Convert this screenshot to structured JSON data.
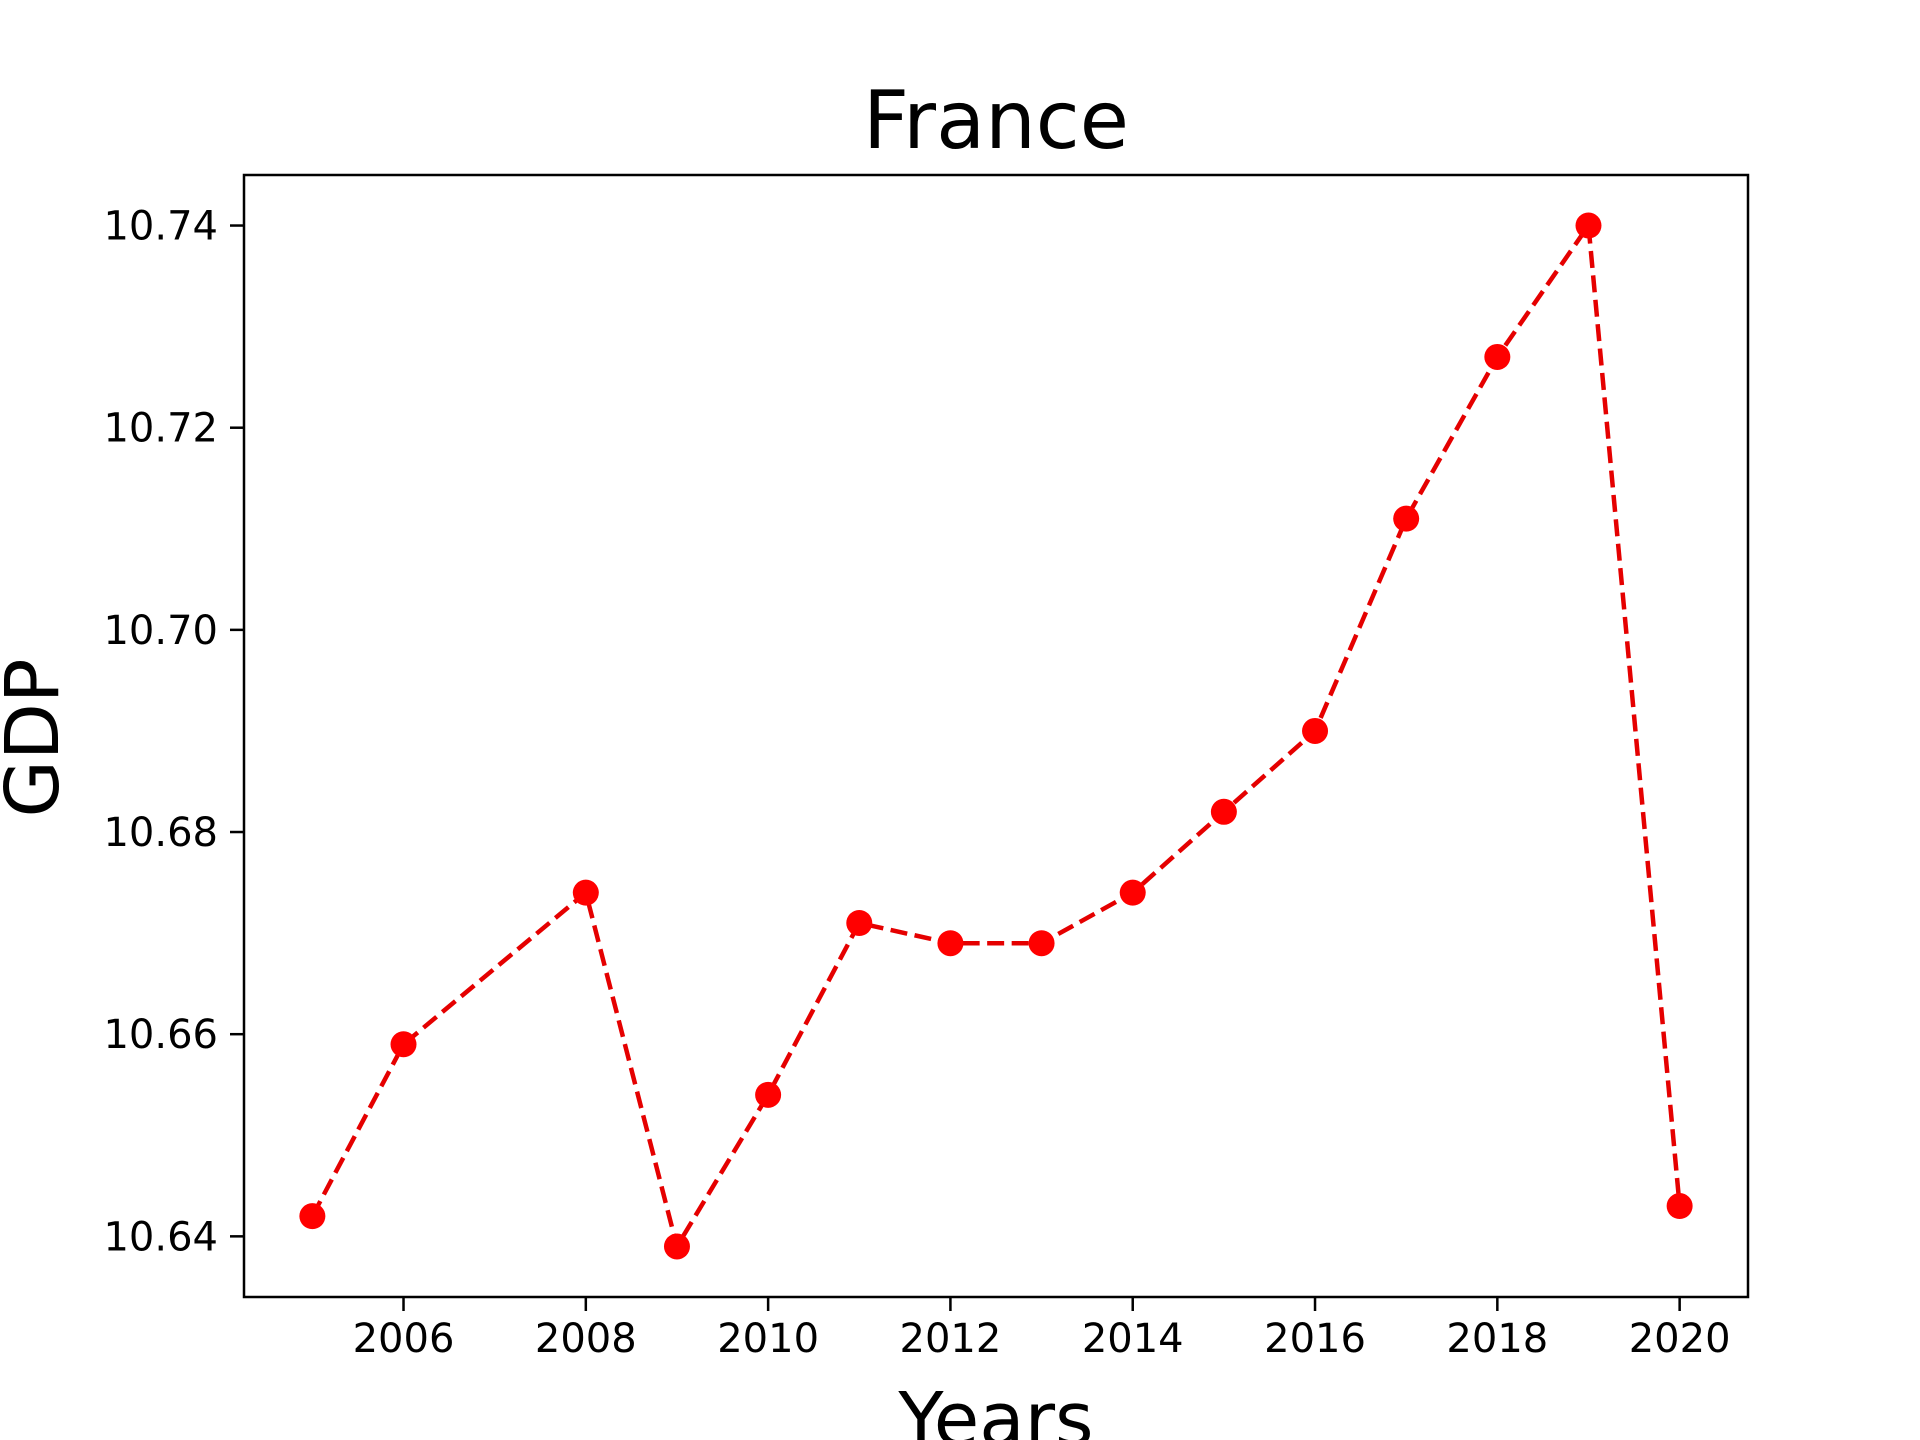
{
  "colors": {
    "line": "#e50000",
    "marker": "#ff0000",
    "axes": "#000000",
    "background": "#ffffff"
  },
  "chart_data": {
    "type": "line",
    "title": "France",
    "xlabel": "Years",
    "ylabel": "GDP",
    "x": [
      2005,
      2006,
      2008,
      2009,
      2010,
      2011,
      2012,
      2013,
      2014,
      2015,
      2016,
      2017,
      2018,
      2019,
      2020
    ],
    "series": [
      {
        "values": [
          10.642,
          10.659,
          10.674,
          10.639,
          10.654,
          10.671,
          10.669,
          10.669,
          10.674,
          10.682,
          10.69,
          10.711,
          10.727,
          10.74,
          10.643
        ],
        "line_style": "dashed",
        "marker": "circle"
      }
    ],
    "xticks": [
      2006,
      2008,
      2010,
      2012,
      2014,
      2016,
      2018,
      2020
    ],
    "xtick_labels": [
      "2006",
      "2008",
      "2010",
      "2012",
      "2014",
      "2016",
      "2018",
      "2020"
    ],
    "yticks": [
      10.64,
      10.66,
      10.68,
      10.7,
      10.72,
      10.74
    ],
    "ytick_labels": [
      "10.64",
      "10.66",
      "10.68",
      "10.70",
      "10.72",
      "10.74"
    ],
    "xlim": [
      2004.25,
      2020.75
    ],
    "ylim": [
      10.634,
      10.745
    ],
    "grid": false,
    "legend": false
  }
}
